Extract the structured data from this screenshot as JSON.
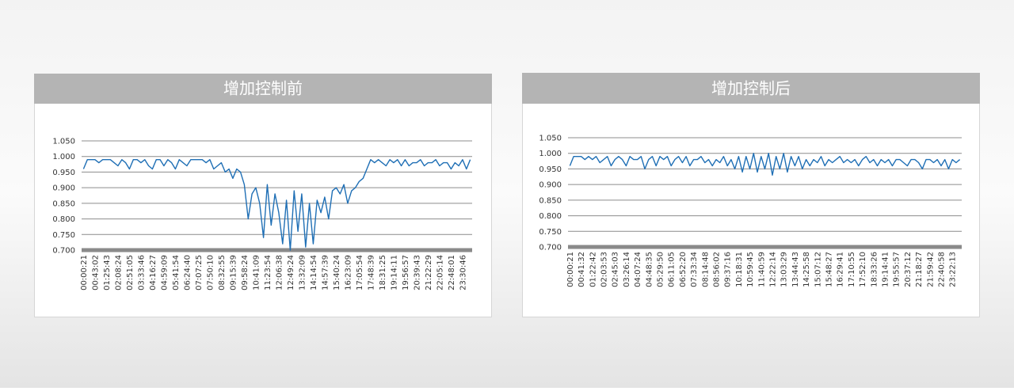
{
  "chart_data": [
    {
      "type": "line",
      "title": "增加控制前",
      "categories": [
        "00:00:21",
        null,
        null,
        "00:43:02",
        null,
        null,
        "01:25:43",
        null,
        null,
        "02:08:24",
        null,
        null,
        "02:51:05",
        null,
        null,
        "03:33:46",
        null,
        null,
        "04:16:27",
        null,
        null,
        "04:59:09",
        null,
        null,
        "05:41:54",
        null,
        null,
        "06:24:40",
        null,
        null,
        "07:07:25",
        null,
        null,
        "07:50:10",
        null,
        null,
        "08:32:55",
        null,
        null,
        "09:15:39",
        null,
        null,
        "09:58:24",
        null,
        null,
        "10:41:09",
        null,
        null,
        "11:23:54",
        null,
        null,
        "12:06:38",
        null,
        null,
        "12:49:24",
        null,
        null,
        "13:32:09",
        null,
        null,
        "14:14:54",
        null,
        null,
        "14:57:39",
        null,
        null,
        "15:40:24",
        null,
        null,
        "16:23:09",
        null,
        null,
        "17:05:54",
        null,
        null,
        "17:48:39",
        null,
        null,
        "18:31:25",
        null,
        null,
        "19:14:11",
        null,
        null,
        "19:56:57",
        null,
        null,
        "20:39:43",
        null,
        null,
        "21:22:29",
        null,
        null,
        "22:05:14",
        null,
        null,
        "22:48:01",
        null,
        null,
        "23:30:46",
        null,
        null
      ],
      "values": [
        0.96,
        0.99,
        0.99,
        0.99,
        0.98,
        0.99,
        0.99,
        0.99,
        0.98,
        0.97,
        0.99,
        0.98,
        0.96,
        0.99,
        0.99,
        0.98,
        0.99,
        0.97,
        0.96,
        0.99,
        0.99,
        0.97,
        0.99,
        0.98,
        0.96,
        0.99,
        0.98,
        0.97,
        0.99,
        0.99,
        0.99,
        0.99,
        0.98,
        0.99,
        0.96,
        0.97,
        0.98,
        0.95,
        0.96,
        0.93,
        0.96,
        0.95,
        0.91,
        0.8,
        0.88,
        0.9,
        0.85,
        0.74,
        0.91,
        0.78,
        0.88,
        0.82,
        0.72,
        0.86,
        0.7,
        0.89,
        0.76,
        0.88,
        0.71,
        0.85,
        0.72,
        0.86,
        0.82,
        0.87,
        0.8,
        0.89,
        0.9,
        0.88,
        0.91,
        0.85,
        0.89,
        0.9,
        0.92,
        0.93,
        0.96,
        0.99,
        0.98,
        0.99,
        0.98,
        0.97,
        0.99,
        0.98,
        0.99,
        0.97,
        0.99,
        0.97,
        0.98,
        0.98,
        0.99,
        0.97,
        0.98,
        0.98,
        0.99,
        0.97,
        0.98,
        0.98,
        0.96,
        0.98,
        0.97,
        0.99,
        0.96,
        0.99
      ],
      "color": "#1f6fb5",
      "ylim": [
        0.7,
        1.05
      ],
      "yticks": [
        {
          "value": 0.7,
          "label": "0.700"
        },
        {
          "value": 0.75,
          "label": "0.750"
        },
        {
          "value": 0.8,
          "label": "0.800"
        },
        {
          "value": 0.85,
          "label": "0.850"
        },
        {
          "value": 0.9,
          "label": "0.900"
        },
        {
          "value": 0.95,
          "label": "0.950"
        },
        {
          "value": 1.0,
          "label": "1.000"
        },
        {
          "value": 1.05,
          "label": "1.050"
        }
      ],
      "grid": true
    },
    {
      "type": "line",
      "title": "增加控制后",
      "categories": [
        "00:00:21",
        null,
        null,
        "00:41:32",
        null,
        null,
        "01:22:42",
        null,
        null,
        "02:03:53",
        null,
        null,
        "02:45:03",
        null,
        null,
        "03:26:14",
        null,
        null,
        "04:07:24",
        null,
        null,
        "04:48:35",
        null,
        null,
        "05:29:50",
        null,
        null,
        "06:11:05",
        null,
        null,
        "06:52:20",
        null,
        null,
        "07:33:34",
        null,
        null,
        "08:14:48",
        null,
        null,
        "08:56:02",
        null,
        null,
        "09:37:16",
        null,
        null,
        "10:18:31",
        null,
        null,
        "10:59:45",
        null,
        null,
        "11:40:59",
        null,
        null,
        "12:22:14",
        null,
        null,
        "13:03:29",
        null,
        null,
        "13:44:43",
        null,
        null,
        "14:25:58",
        null,
        null,
        "15:07:12",
        null,
        null,
        "15:48:27",
        null,
        null,
        "16:29:41",
        null,
        null,
        "17:10:55",
        null,
        null,
        "17:52:10",
        null,
        null,
        "18:33:26",
        null,
        null,
        "19:14:41",
        null,
        null,
        "19:55:57",
        null,
        null,
        "20:37:12",
        null,
        null,
        "21:18:27",
        null,
        null,
        "21:59:42",
        null,
        null,
        "22:40:58",
        null,
        null,
        "23:22:13",
        null,
        null
      ],
      "values": [
        0.96,
        0.99,
        0.99,
        0.99,
        0.98,
        0.99,
        0.98,
        0.99,
        0.97,
        0.98,
        0.99,
        0.96,
        0.98,
        0.99,
        0.98,
        0.96,
        0.99,
        0.98,
        0.98,
        0.99,
        0.95,
        0.98,
        0.99,
        0.96,
        0.99,
        0.98,
        0.99,
        0.96,
        0.98,
        0.99,
        0.97,
        0.99,
        0.96,
        0.98,
        0.98,
        0.99,
        0.97,
        0.98,
        0.96,
        0.98,
        0.97,
        0.99,
        0.96,
        0.98,
        0.95,
        0.99,
        0.94,
        0.99,
        0.95,
        1.0,
        0.94,
        0.99,
        0.95,
        1.0,
        0.93,
        0.99,
        0.95,
        1.0,
        0.94,
        0.99,
        0.96,
        0.99,
        0.95,
        0.98,
        0.96,
        0.98,
        0.97,
        0.99,
        0.96,
        0.98,
        0.97,
        0.98,
        0.99,
        0.97,
        0.98,
        0.97,
        0.98,
        0.96,
        0.98,
        0.99,
        0.97,
        0.98,
        0.96,
        0.98,
        0.97,
        0.98,
        0.96,
        0.98,
        0.98,
        0.97,
        0.96,
        0.98,
        0.98,
        0.97,
        0.95,
        0.98,
        0.98,
        0.97,
        0.98,
        0.96,
        0.98,
        0.95,
        0.98,
        0.97,
        0.98
      ],
      "color": "#1f6fb5",
      "ylim": [
        0.7,
        1.05
      ],
      "yticks": [
        {
          "value": 0.7,
          "label": "0.700"
        },
        {
          "value": 0.75,
          "label": "0.750"
        },
        {
          "value": 0.8,
          "label": "0.800"
        },
        {
          "value": 0.85,
          "label": "0.850"
        },
        {
          "value": 0.9,
          "label": "0.900"
        },
        {
          "value": 0.95,
          "label": "0.950"
        },
        {
          "value": 1.0,
          "label": "1.000"
        },
        {
          "value": 1.05,
          "label": "1.050"
        }
      ],
      "grid": true
    }
  ]
}
